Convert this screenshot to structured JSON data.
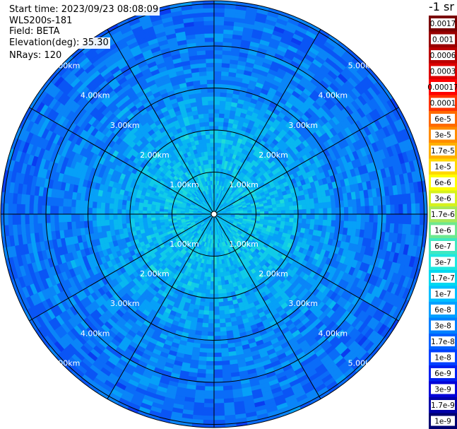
{
  "info": {
    "start_time": "Start time: 2023/09/23 08:08:09",
    "instrument": "WLS200s-181",
    "field": "Field: BETA",
    "elevation": "Elevation(deg): 35.30",
    "nrays": "NRays: 120"
  },
  "chart_data": {
    "type": "heatmap",
    "subtype": "polar-ppi",
    "field": "BETA",
    "elevation_deg": 35.3,
    "n_rays": 120,
    "range_rings_km": [
      1.0,
      2.0,
      3.0,
      4.0,
      5.0
    ],
    "ring_labels": [
      "1.00km",
      "2.00km",
      "3.00km",
      "4.00km",
      "5.00km"
    ],
    "spoke_step_deg": 30,
    "colorbar": {
      "unit_label": "-1 sr",
      "labels": [
        "0.0017",
        "0.001",
        "0.0006",
        "0.0003",
        "0.00017",
        "0.0001",
        "6e-5",
        "3e-5",
        "1.7e-5",
        "1e-5",
        "6e-6",
        "3e-6",
        "1.7e-6",
        "1e-6",
        "6e-7",
        "3e-7",
        "1.7e-7",
        "1e-7",
        "6e-8",
        "3e-8",
        "1.7e-8",
        "1e-8",
        "6e-9",
        "3e-9",
        "1.7e-9",
        "1e-9"
      ],
      "colors": [
        "#7a0000",
        "#990000",
        "#bb0000",
        "#dd0000",
        "#ff0000",
        "#ff3300",
        "#ff6a00",
        "#ff8c00",
        "#ffb000",
        "#ffd800",
        "#ffff00",
        "#d6f21c",
        "#a8e85a",
        "#6ee88f",
        "#3fe8c2",
        "#1fe8e0",
        "#00d8f0",
        "#00bfff",
        "#00a0ff",
        "#0080ff",
        "#0060ff",
        "#0040ff",
        "#0020f0",
        "#0000d8",
        "#0000a8",
        "#000070"
      ]
    },
    "values_note": "Backscatter mostly between 6e-8 and 1e-6, highest near centre"
  }
}
